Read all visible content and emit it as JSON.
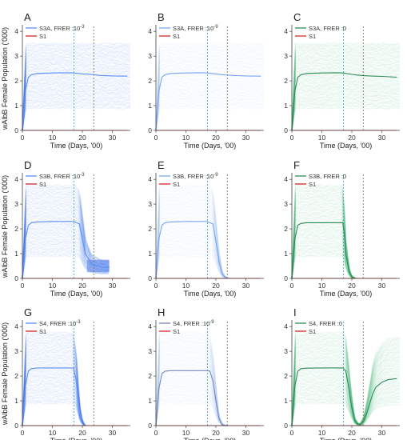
{
  "figure": {
    "ylabel": "wAlbB Female Population ('000)",
    "xlabel": "Time (Days, '00)",
    "xticks": [
      0,
      10,
      20,
      30
    ],
    "yticks": [
      0,
      1,
      2,
      3,
      4
    ],
    "xlim": [
      0,
      36
    ],
    "ylim": [
      0,
      4.2
    ]
  },
  "chart_data": [
    {
      "type": "line",
      "panel": "A",
      "scenario": "S3A",
      "frer": "10^-3",
      "legend": [
        "S3A, FRER :10",
        "-3",
        "S1"
      ],
      "colors": {
        "main": "#5b8ff9",
        "band": "#3b6fe8",
        "s1": "#d62728"
      },
      "release_vline": 17.2,
      "stop_vline": 23.8,
      "series": [
        {
          "name": "S3A, FRER :10^-3",
          "x": [
            0,
            1,
            2,
            3,
            5,
            10,
            15,
            17,
            20,
            23,
            26,
            30,
            35
          ],
          "y": [
            0,
            1.6,
            2.15,
            2.25,
            2.3,
            2.32,
            2.33,
            2.32,
            2.28,
            2.26,
            2.22,
            2.2,
            2.19
          ]
        },
        {
          "name": "S1",
          "x": [
            0,
            35
          ],
          "y": [
            0,
            0
          ]
        }
      ],
      "band_low": 1.0,
      "band_high": 3.5,
      "band_shape": "steady"
    },
    {
      "type": "line",
      "panel": "B",
      "scenario": "S3A",
      "frer": "10^-9",
      "legend": [
        "S3A, FRER :10",
        "-9",
        "S1"
      ],
      "colors": {
        "main": "#7aa6f0",
        "band": "#a9c4f2",
        "s1": "#d62728"
      },
      "release_vline": 17.2,
      "stop_vline": 23.8,
      "series": [
        {
          "name": "S3A, FRER :10^-9",
          "x": [
            0,
            1,
            2,
            3,
            5,
            10,
            15,
            17,
            20,
            23,
            26,
            30,
            35
          ],
          "y": [
            0,
            1.6,
            2.15,
            2.25,
            2.3,
            2.32,
            2.33,
            2.32,
            2.28,
            2.24,
            2.22,
            2.2,
            2.19
          ]
        },
        {
          "name": "S1",
          "x": [
            0,
            35
          ],
          "y": [
            0,
            0
          ]
        }
      ],
      "band_low": 1.0,
      "band_high": 3.5,
      "band_shape": "steady"
    },
    {
      "type": "line",
      "panel": "C",
      "scenario": "S3A",
      "frer": "0",
      "legend": [
        "S3A, FRER :0",
        "",
        "S1"
      ],
      "colors": {
        "main": "#2e8b57",
        "band": "#3cb371",
        "s1": "#d62728"
      },
      "release_vline": 17.2,
      "stop_vline": 23.8,
      "series": [
        {
          "name": "S3A, FRER :0",
          "x": [
            0,
            1,
            2,
            3,
            5,
            10,
            15,
            17,
            20,
            23,
            26,
            30,
            35
          ],
          "y": [
            0,
            1.6,
            2.15,
            2.25,
            2.3,
            2.32,
            2.33,
            2.32,
            2.26,
            2.22,
            2.2,
            2.18,
            2.15
          ]
        },
        {
          "name": "S1",
          "x": [
            0,
            35
          ],
          "y": [
            0,
            0
          ]
        }
      ],
      "band_low": 1.0,
      "band_high": 3.5,
      "band_shape": "steady"
    },
    {
      "type": "line",
      "panel": "D",
      "scenario": "S3B",
      "frer": "10^-3",
      "legend": [
        "S3B, FRER :10",
        "-3",
        "S1"
      ],
      "colors": {
        "main": "#5b8ff9",
        "band": "#3b6fe8",
        "s1": "#d62728"
      },
      "release_vline": 17.2,
      "stop_vline": 23.8,
      "series": [
        {
          "name": "S3B, FRER :10^-3",
          "x": [
            0,
            1,
            2,
            3,
            5,
            10,
            15,
            17,
            18,
            19,
            20,
            21,
            22,
            23,
            24,
            25,
            26,
            27,
            28,
            29
          ],
          "y": [
            0,
            1.6,
            2.15,
            2.25,
            2.28,
            2.3,
            2.3,
            2.3,
            2.25,
            2.2,
            1.6,
            1.0,
            0.8,
            0.6,
            0.55,
            0.5,
            0.48,
            0.45,
            0.45,
            0.45
          ]
        },
        {
          "name": "S1",
          "x": [
            0,
            35
          ],
          "y": [
            0,
            0
          ]
        }
      ],
      "band_low": 1.0,
      "band_high": 3.75,
      "band_shape": "drop_partial"
    },
    {
      "type": "line",
      "panel": "E",
      "scenario": "S3B",
      "frer": "10^-9",
      "legend": [
        "S3B, FRER :10",
        "-9",
        "S1"
      ],
      "colors": {
        "main": "#7aa6f0",
        "band": "#a9c4f2",
        "s1": "#d62728"
      },
      "release_vline": 17.2,
      "stop_vline": 23.8,
      "series": [
        {
          "name": "S3B, FRER :10^-9",
          "x": [
            0,
            1,
            2,
            3,
            5,
            10,
            15,
            17,
            18,
            19,
            20,
            21,
            22,
            23,
            24,
            25
          ],
          "y": [
            0,
            1.6,
            2.15,
            2.25,
            2.28,
            2.3,
            2.3,
            2.3,
            2.25,
            2.2,
            1.5,
            0.7,
            0.2,
            0.05,
            0.01,
            0
          ]
        },
        {
          "name": "S1",
          "x": [
            0,
            35
          ],
          "y": [
            0,
            0
          ]
        }
      ],
      "band_low": 1.0,
      "band_high": 3.75,
      "band_shape": "drop"
    },
    {
      "type": "line",
      "panel": "F",
      "scenario": "S3B",
      "frer": "0",
      "legend": [
        "S3B, FRER :0",
        "",
        "S1"
      ],
      "colors": {
        "main": "#2e8b57",
        "band": "#3cb371",
        "s1": "#d62728"
      },
      "release_vline": 17.2,
      "stop_vline": 23.8,
      "series": [
        {
          "name": "S3B, FRER :0",
          "x": [
            0,
            1,
            2,
            3,
            5,
            10,
            15,
            17,
            17.5,
            18,
            19,
            20,
            21,
            22
          ],
          "y": [
            0,
            1.6,
            2.15,
            2.22,
            2.25,
            2.25,
            2.25,
            2.25,
            1.8,
            1.0,
            0.3,
            0.05,
            0.01,
            0
          ]
        },
        {
          "name": "S1",
          "x": [
            0,
            35
          ],
          "y": [
            0,
            0
          ]
        }
      ],
      "band_low": 1.0,
      "band_high": 3.75,
      "band_shape": "drop_early"
    },
    {
      "type": "line",
      "panel": "G",
      "scenario": "S4",
      "frer": "10^-3",
      "legend": [
        "S4, FRER :10",
        "-3",
        "S1"
      ],
      "colors": {
        "main": "#5b8ff9",
        "band": "#3b6fe8",
        "s1": "#d62728"
      },
      "release_vline": 17.2,
      "stop_vline": 23.8,
      "series": [
        {
          "name": "S4, FRER :10^-3",
          "x": [
            0,
            1,
            2,
            3,
            5,
            10,
            15,
            17,
            18,
            19,
            20,
            21
          ],
          "y": [
            0,
            1.6,
            2.2,
            2.3,
            2.33,
            2.33,
            2.33,
            2.33,
            1.8,
            0.6,
            0.1,
            0
          ]
        },
        {
          "name": "S1",
          "x": [
            0,
            35
          ],
          "y": [
            0,
            0
          ]
        }
      ],
      "band_low": 1.0,
      "band_high": 3.75,
      "band_shape": "drop_early"
    },
    {
      "type": "line",
      "panel": "H",
      "scenario": "S4",
      "frer": "10^-9",
      "legend": [
        "S4, FRER :10",
        "-9",
        "S1"
      ],
      "colors": {
        "main": "#7a86b8",
        "band": "#a9c4f2",
        "s1": "#d62728"
      },
      "release_vline": 17.2,
      "stop_vline": 23.8,
      "series": [
        {
          "name": "S4, FRER :10^-9",
          "x": [
            0,
            1,
            2,
            3,
            5,
            10,
            15,
            17,
            18,
            19,
            20,
            21,
            22,
            23
          ],
          "y": [
            0,
            1.5,
            2.1,
            2.2,
            2.22,
            2.22,
            2.22,
            2.22,
            2.2,
            1.8,
            1.0,
            0.3,
            0.05,
            0
          ]
        },
        {
          "name": "S1",
          "x": [
            0,
            35
          ],
          "y": [
            0,
            0
          ]
        }
      ],
      "band_low": 1.0,
      "band_high": 3.75,
      "band_shape": "drop"
    },
    {
      "type": "line",
      "panel": "I",
      "scenario": "S4",
      "frer": "0",
      "legend": [
        "S4, FRER :0",
        "",
        "S1"
      ],
      "colors": {
        "main": "#2e8b57",
        "band": "#3cb371",
        "s1": "#d62728"
      },
      "release_vline": 17.2,
      "stop_vline": 23.8,
      "series": [
        {
          "name": "S4, FRER :0",
          "x": [
            0,
            1,
            2,
            3,
            5,
            10,
            15,
            17,
            18,
            19,
            20,
            21,
            22,
            23,
            24,
            25,
            26,
            27,
            28,
            30,
            32,
            35
          ],
          "y": [
            0,
            1.6,
            2.2,
            2.3,
            2.32,
            2.33,
            2.33,
            2.33,
            2.2,
            1.5,
            0.7,
            0.2,
            0.05,
            0.05,
            0.2,
            0.5,
            0.9,
            1.3,
            1.55,
            1.75,
            1.85,
            1.9
          ]
        },
        {
          "name": "S1",
          "x": [
            0,
            35
          ],
          "y": [
            0,
            0
          ]
        }
      ],
      "band_low": 1.0,
      "band_high": 3.75,
      "band_shape": "recover"
    }
  ]
}
